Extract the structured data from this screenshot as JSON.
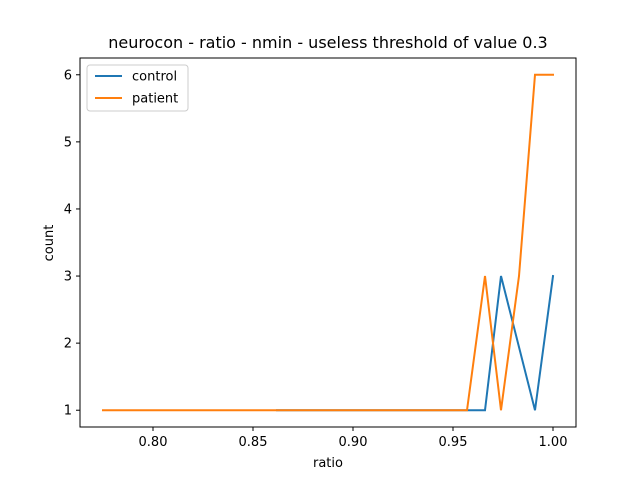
{
  "chart_data": {
    "type": "line",
    "title": "neurocon - ratio - nmin - useless threshold of value 0.3",
    "xlabel": "ratio",
    "ylabel": "count",
    "xlim": [
      0.7635,
      1.0115
    ],
    "ylim": [
      0.75,
      6.25
    ],
    "xticks": [
      0.8,
      0.85,
      0.9,
      0.95,
      1.0
    ],
    "xtick_labels": [
      "0.80",
      "0.85",
      "0.90",
      "0.95",
      "1.00"
    ],
    "yticks": [
      1,
      2,
      3,
      4,
      5,
      6
    ],
    "ytick_labels": [
      "1",
      "2",
      "3",
      "4",
      "5",
      "6"
    ],
    "grid": false,
    "legend_position": "top-left",
    "series": [
      {
        "name": "control",
        "color": "#1f77b4",
        "x": [
          0.862,
          0.966,
          0.974,
          0.991,
          1.0
        ],
        "y": [
          1,
          1,
          3,
          1,
          3
        ]
      },
      {
        "name": "patient",
        "color": "#ff7f0e",
        "x": [
          0.775,
          0.957,
          0.966,
          0.974,
          0.983,
          0.991,
          1.0
        ],
        "y": [
          1,
          1,
          3,
          1,
          3,
          6,
          6
        ]
      }
    ]
  }
}
